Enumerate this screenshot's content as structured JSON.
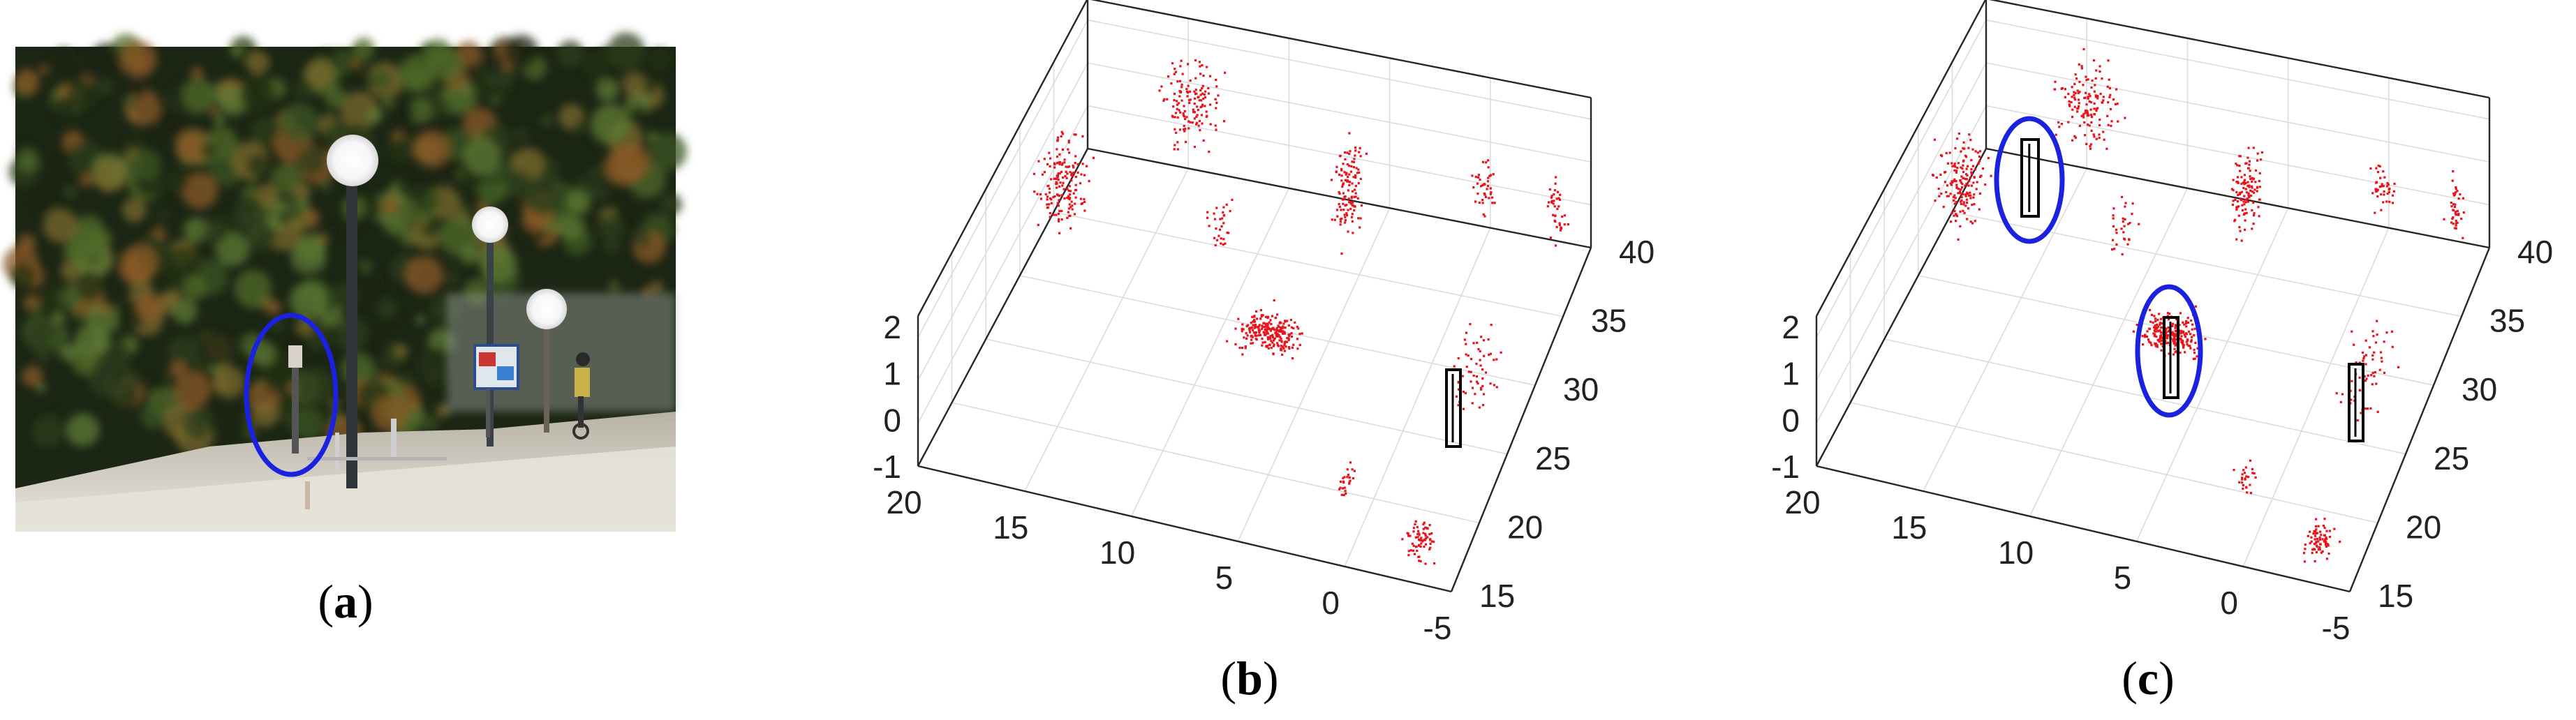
{
  "panels": [
    {
      "id": "a",
      "caption": "a"
    },
    {
      "id": "b",
      "caption": "b"
    },
    {
      "id": "c",
      "caption": "c"
    }
  ],
  "axes3d": {
    "z_ticks": [
      "2",
      "1",
      "0",
      "-1"
    ],
    "x_ticks": [
      "20",
      "15",
      "10",
      "5",
      "0",
      "-5"
    ],
    "y_ticks": [
      "15",
      "20",
      "25",
      "30",
      "35",
      "40"
    ]
  },
  "colors": {
    "points": "#e8141b",
    "ellipse": "#1a22e0",
    "box": "#000000"
  }
}
